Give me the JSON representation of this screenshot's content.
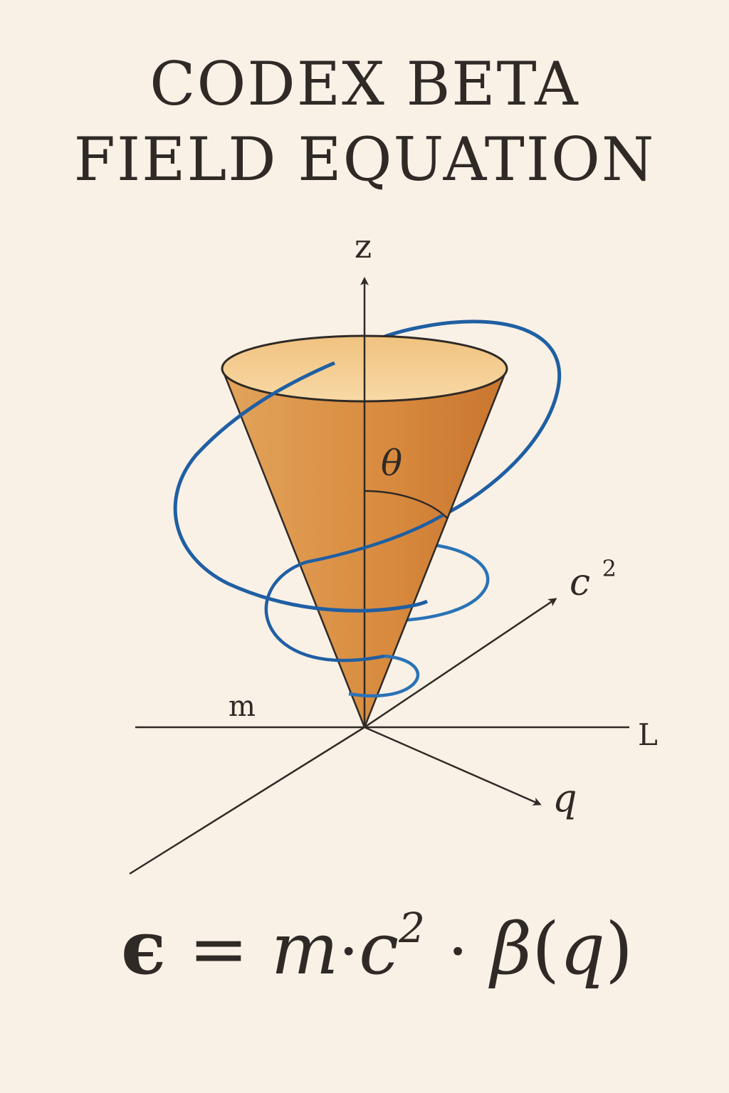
{
  "title": {
    "line1": "CODEX BETA",
    "line2": "FIELD EQUATION"
  },
  "axes": {
    "z": "z",
    "c2_base": "c",
    "c2_exp": "2",
    "L": "L",
    "q": "q",
    "m": "m"
  },
  "angle_label": "θ",
  "formula": {
    "epsilon": "ϵ",
    "equals": "=",
    "m": "m",
    "dot1": "·",
    "c": "c",
    "exponent": "2",
    "dot2": "·",
    "beta": "β",
    "open_paren": "(",
    "q": "q",
    "close_paren": ")"
  },
  "colors": {
    "background": "#faf1e6",
    "cone": "#d98c3f",
    "cone_top": "#f4c98b",
    "helix": "#1f5fa3",
    "ink": "#2f2a26"
  }
}
